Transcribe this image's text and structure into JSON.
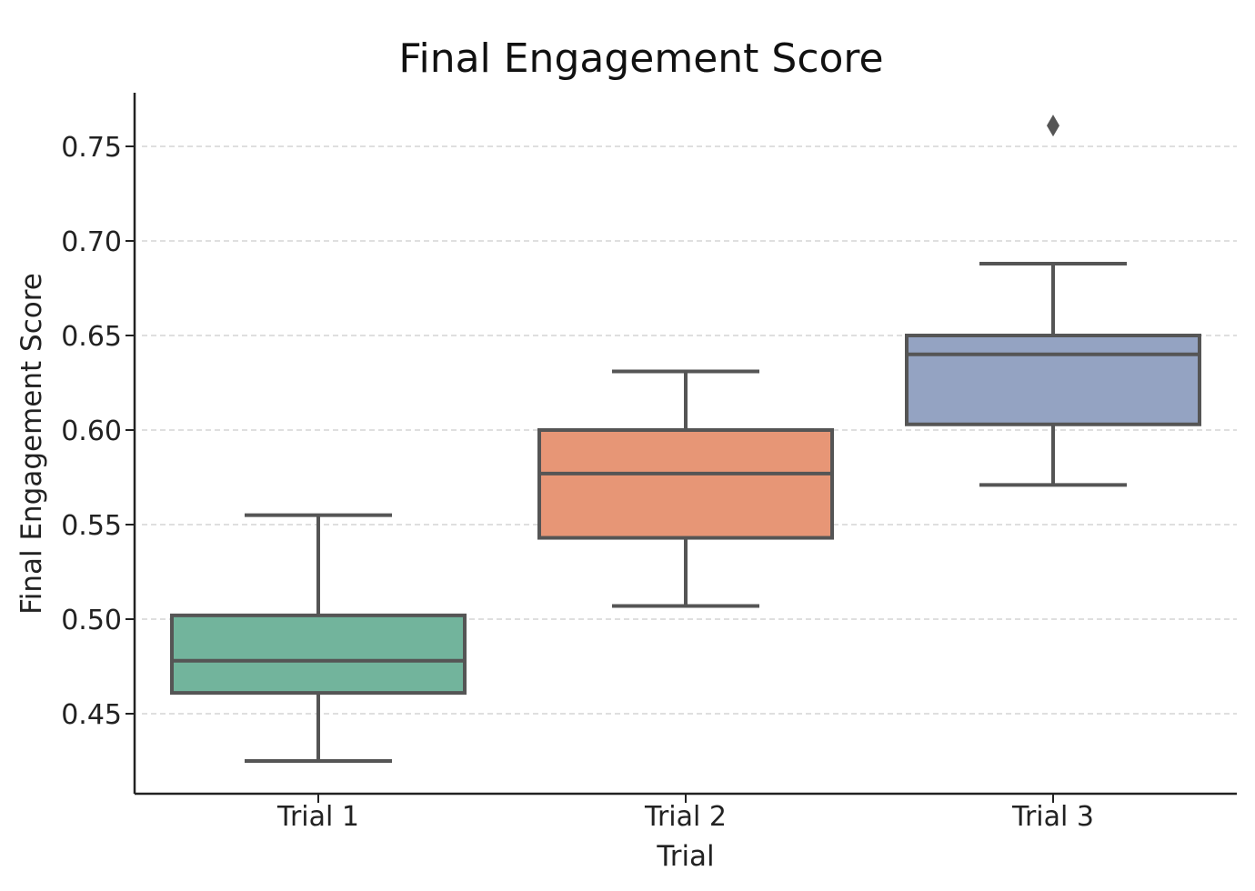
{
  "chart_data": {
    "type": "box",
    "title": "Final Engagement Score",
    "xlabel": "Trial",
    "ylabel": "Final Engagement Score",
    "ylim": [
      0.408,
      0.778
    ],
    "yticks": [
      0.45,
      0.5,
      0.55,
      0.6,
      0.65,
      0.7,
      0.75
    ],
    "ytick_labels": [
      "0.45",
      "0.50",
      "0.55",
      "0.60",
      "0.65",
      "0.70",
      "0.75"
    ],
    "grid": "horizontal dashed",
    "categories": [
      "Trial 1",
      "Trial 2",
      "Trial 3"
    ],
    "boxes": [
      {
        "category": "Trial 1",
        "whisker_low": 0.425,
        "q1": 0.461,
        "median": 0.478,
        "q3": 0.502,
        "whisker_high": 0.555,
        "outliers": [],
        "color": "#72b49c"
      },
      {
        "category": "Trial 2",
        "whisker_low": 0.507,
        "q1": 0.543,
        "median": 0.577,
        "q3": 0.6,
        "whisker_high": 0.631,
        "outliers": [],
        "color": "#e79676"
      },
      {
        "category": "Trial 3",
        "whisker_low": 0.571,
        "q1": 0.603,
        "median": 0.64,
        "q3": 0.65,
        "whisker_high": 0.688,
        "outliers": [
          0.761
        ],
        "color": "#94a3c2"
      }
    ]
  },
  "colors": {
    "edge": "#555555",
    "grid": "#cccccc",
    "axis": "#222222"
  }
}
